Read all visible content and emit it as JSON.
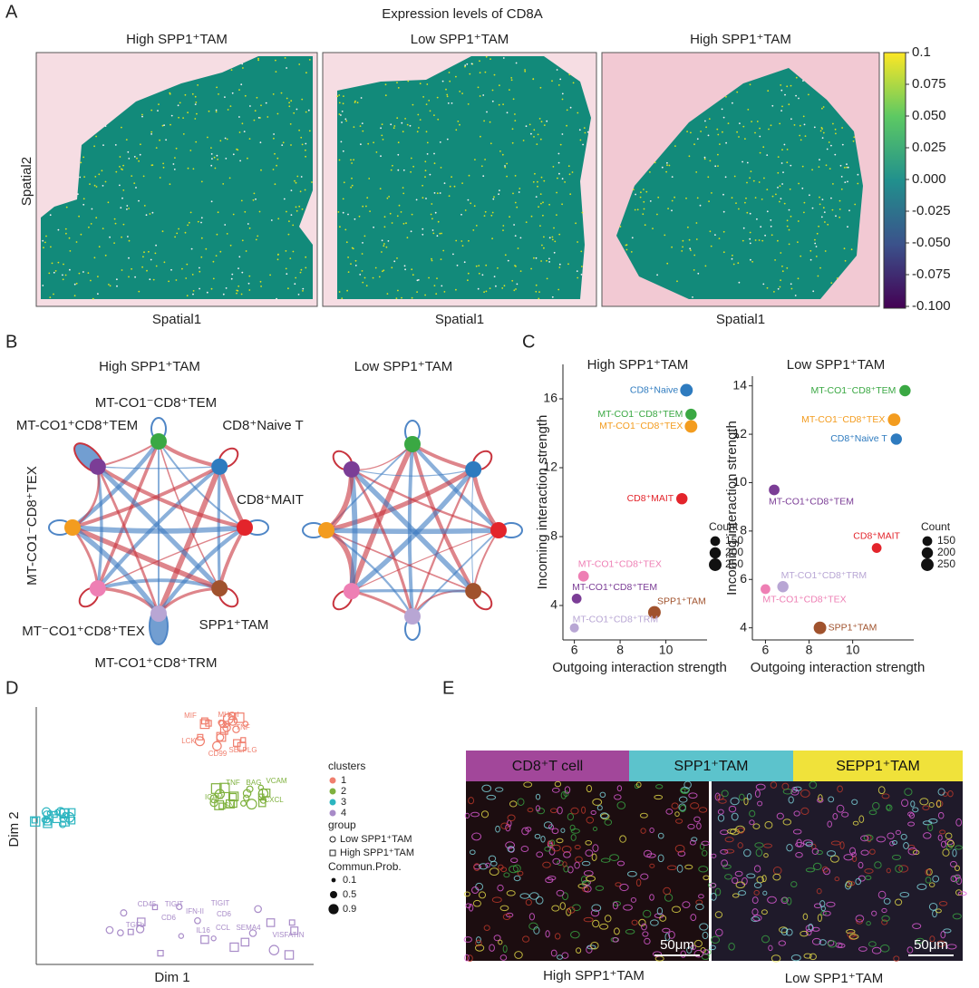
{
  "panel_a": {
    "letter": "A",
    "title": "Expression levels of CD8A",
    "sections": [
      "High SPP1⁺TAM",
      "Low SPP1⁺TAM",
      "High SPP1⁺TAM"
    ],
    "y_label": "Spatial2",
    "x_label": "Spatial1",
    "colorbar": {
      "lim": [
        -0.1,
        0.1
      ],
      "ticks": [
        0.1,
        0.075,
        {
          "value": 0.05,
          "label": "0.050"
        },
        0.025,
        {
          "value": 0,
          "label": "0.000"
        },
        -0.025,
        {
          "value": -0.05,
          "label": "-0.050"
        },
        -0.075,
        {
          "value": -0.1,
          "label": "-0.100"
        }
      ],
      "colors": [
        "#440154",
        "#3b528b",
        "#21908d",
        "#5dc963",
        "#fde725"
      ]
    }
  },
  "panel_b": {
    "letter": "B",
    "titles": [
      "High SPP1⁺TAM",
      "Low SPP1⁺TAM"
    ],
    "nodes": [
      {
        "label": "MT-CO1⁻CD8⁺TEM",
        "color": "#3aa843"
      },
      {
        "label": "CD8⁺Naive T",
        "color": "#2e7bbf"
      },
      {
        "label": "CD8⁺MAIT",
        "color": "#e3242b"
      },
      {
        "label": "SPP1⁺TAM",
        "color": "#a0522d"
      },
      {
        "label": "MT-CO1⁺CD8⁺TRM",
        "color": "#b8a6d4"
      },
      {
        "label": "MT⁻CO1⁺CD8⁺TEX",
        "color": "#ee7fb4"
      },
      {
        "label": "MT-CO1⁻CD8⁺TEX",
        "color": "#f39c1f"
      },
      {
        "label": "MT-CO1⁺CD8⁺TEM",
        "color": "#7b3d96"
      }
    ]
  },
  "panel_c": {
    "letter": "C",
    "x_label": "Outgoing interaction strength",
    "y_label": "Incoming interaction strength",
    "size_legend": {
      "title": "Count",
      "values": [
        150,
        200,
        250
      ]
    },
    "charts": [
      {
        "type": "scatter",
        "title": "High SPP1⁺TAM",
        "xlim": [
          5.5,
          11.8
        ],
        "ylim": [
          2,
          18
        ],
        "xticks": [
          6,
          8,
          10
        ],
        "yticks": [
          4,
          8,
          12,
          16
        ],
        "points": [
          {
            "name": "CD8⁺Naive",
            "color": "#2e7bbf",
            "x": 10.9,
            "y": 16.5,
            "count": 250
          },
          {
            "name": "MT-CO1⁻CD8⁺TEM",
            "color": "#3aa843",
            "x": 11.1,
            "y": 15.1,
            "count": 200
          },
          {
            "name": "MT-CO1⁻CD8⁺TEX",
            "color": "#f39c1f",
            "x": 11.1,
            "y": 14.4,
            "count": 250
          },
          {
            "name": "CD8⁺MAIT",
            "color": "#e3242b",
            "x": 10.7,
            "y": 10.2,
            "count": 200
          },
          {
            "name": "MT-CO1⁺CD8⁺TEX",
            "color": "#ee7fb4",
            "x": 6.4,
            "y": 5.7,
            "count": 180
          },
          {
            "name": "MT-CO1⁺CD8⁺TEM",
            "color": "#7b3d96",
            "x": 6.1,
            "y": 4.4,
            "count": 150
          },
          {
            "name": "SPP1⁺TAM",
            "color": "#a0522d",
            "x": 9.5,
            "y": 3.6,
            "count": 250
          },
          {
            "name": "MT-CO1⁺CD8⁺TRM",
            "color": "#b8a6d4",
            "x": 6.0,
            "y": 2.7,
            "count": 130
          }
        ]
      },
      {
        "type": "scatter",
        "title": "Low SPP1⁺TAM",
        "xlim": [
          5.4,
          12.8
        ],
        "ylim": [
          3.5,
          14.4
        ],
        "xticks": [
          6,
          8,
          10
        ],
        "yticks": [
          4,
          6,
          8,
          10,
          12,
          14
        ],
        "points": [
          {
            "name": "MT-CO1⁻CD8⁺TEM",
            "color": "#3aa843",
            "x": 12.4,
            "y": 13.8,
            "count": 200
          },
          {
            "name": "MT-CO1⁻CD8⁺TEX",
            "color": "#f39c1f",
            "x": 11.9,
            "y": 12.6,
            "count": 250
          },
          {
            "name": "CD8⁺Naive T",
            "color": "#2e7bbf",
            "x": 12.0,
            "y": 11.8,
            "count": 200
          },
          {
            "name": "MT-CO1⁺CD8⁺TEM",
            "color": "#7b3d96",
            "x": 6.4,
            "y": 9.7,
            "count": 180
          },
          {
            "name": "CD8⁺MAIT",
            "color": "#e3242b",
            "x": 11.1,
            "y": 7.3,
            "count": 150
          },
          {
            "name": "MT-CO1⁺CD8⁺TRM",
            "color": "#b8a6d4",
            "x": 6.8,
            "y": 5.7,
            "count": 200
          },
          {
            "name": "MT-CO1⁺CD8⁺TEX",
            "color": "#ee7fb4",
            "x": 6.0,
            "y": 5.6,
            "count": 150
          },
          {
            "name": "SPP1⁺TAM",
            "color": "#a0522d",
            "x": 8.5,
            "y": 4.0,
            "count": 250
          }
        ]
      }
    ]
  },
  "panel_d": {
    "letter": "D",
    "x_label": "Dim 1",
    "y_label": "Dim 2",
    "labels": [
      {
        "text": "MIF",
        "cluster": 0
      },
      {
        "text": "MHC-I",
        "cluster": 0
      },
      {
        "text": "TNF",
        "cluster": 0
      },
      {
        "text": "LCK",
        "cluster": 0
      },
      {
        "text": "CD99",
        "cluster": 0
      },
      {
        "text": "SELPLG",
        "cluster": 0
      },
      {
        "text": "TNF",
        "cluster": 1
      },
      {
        "text": "BAG",
        "cluster": 1
      },
      {
        "text": "VCAM",
        "cluster": 1
      },
      {
        "text": "ICAM",
        "cluster": 1
      },
      {
        "text": "SN",
        "cluster": 1
      },
      {
        "text": "CXCL",
        "cluster": 1
      },
      {
        "text": "CD45",
        "cluster": 3
      },
      {
        "text": "TIGIT",
        "cluster": 3
      },
      {
        "text": "CD6",
        "cluster": 3
      },
      {
        "text": "IFN-II",
        "cluster": 3
      },
      {
        "text": "TIGIT",
        "cluster": 3
      },
      {
        "text": "CD6",
        "cluster": 3
      },
      {
        "text": "IL16",
        "cluster": 3
      },
      {
        "text": "CCL",
        "cluster": 3
      },
      {
        "text": "SEMA4",
        "cluster": 3
      },
      {
        "text": "VISFATIN",
        "cluster": 3
      },
      {
        "text": "TGFb",
        "cluster": 3
      }
    ],
    "legend": {
      "clusters_title": "clusters",
      "clusters": [
        "1",
        "2",
        "3",
        "4"
      ],
      "cluster_colors": [
        "#f07f6e",
        "#7fb13e",
        "#2cb5c0",
        "#a88bc8"
      ],
      "group_title": "group",
      "groups": [
        "Low SPP1⁺TAM",
        "High SPP1⁺TAM"
      ],
      "prob_title": "Commun.Prob.",
      "probs": [
        0.1,
        0.5,
        0.9
      ]
    }
  },
  "panel_e": {
    "letter": "E",
    "headers": [
      {
        "label": "CD8⁺T cell",
        "color": "#a2479a"
      },
      {
        "label": "SPP1⁺TAM",
        "color": "#5cc3cc"
      },
      {
        "label": "SEPP1⁺TAM",
        "color": "#f0e23a"
      }
    ],
    "scale_bar": "50μm",
    "captions": [
      "High SPP1⁺TAM",
      "Low SPP1⁺TAM"
    ]
  }
}
